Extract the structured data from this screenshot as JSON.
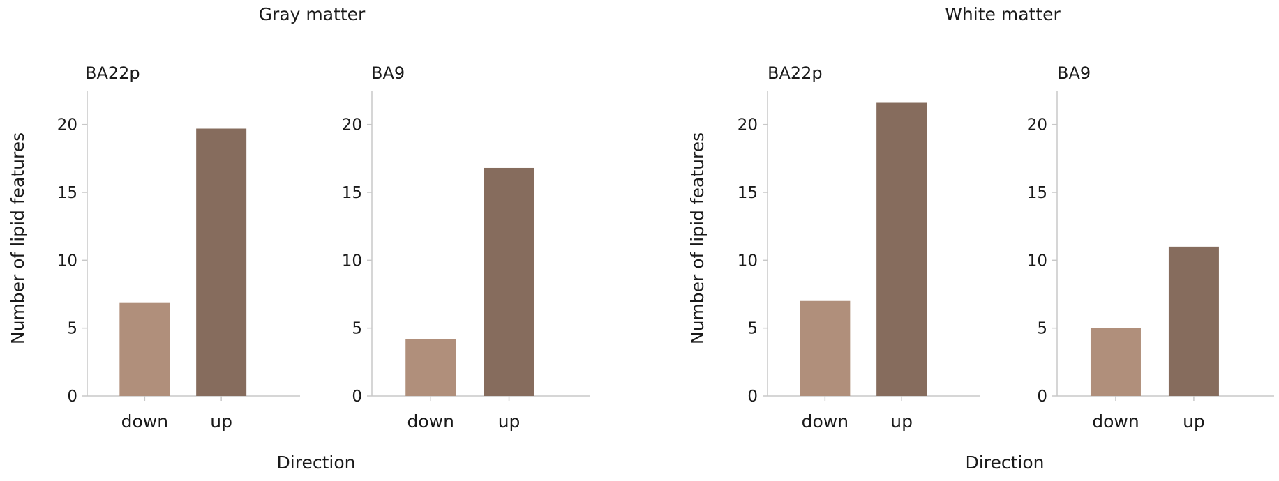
{
  "colors": {
    "down": "#b08f7b",
    "up": "#866c5d"
  },
  "chart_data": [
    {
      "type": "bar",
      "group": "Gray matter",
      "title": "BA22p",
      "categories": [
        "down",
        "up"
      ],
      "values": [
        6.9,
        19.7
      ],
      "ylim": [
        0,
        22.5
      ],
      "yticks": [
        "0",
        "5",
        "10",
        "15",
        "20"
      ],
      "ylabel": "Number of lipid features",
      "xlabel": "Direction"
    },
    {
      "type": "bar",
      "group": "Gray matter",
      "title": "BA9",
      "categories": [
        "down",
        "up"
      ],
      "values": [
        4.2,
        16.8
      ],
      "ylim": [
        0,
        22.5
      ],
      "yticks": [
        "0",
        "5",
        "10",
        "15",
        "20"
      ]
    },
    {
      "type": "bar",
      "group": "White matter",
      "title": "BA22p",
      "categories": [
        "down",
        "up"
      ],
      "values": [
        7.0,
        21.6
      ],
      "ylim": [
        0,
        22.5
      ],
      "yticks": [
        "0",
        "5",
        "10",
        "15",
        "20"
      ],
      "ylabel": "Number of lipid features",
      "xlabel": "Direction"
    },
    {
      "type": "bar",
      "group": "White matter",
      "title": "BA9",
      "categories": [
        "down",
        "up"
      ],
      "values": [
        5.0,
        11.0
      ],
      "ylim": [
        0,
        22.5
      ],
      "yticks": [
        "0",
        "5",
        "10",
        "15",
        "20"
      ]
    }
  ]
}
